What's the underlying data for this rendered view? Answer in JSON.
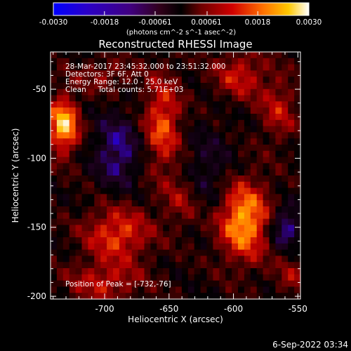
{
  "colorbar": {
    "ticks": [
      "-0.0030",
      "-0.0018",
      "-0.00061",
      "0.00061",
      "0.0018",
      "0.0030"
    ],
    "unit_label": "(photons cm^-2 s^-1 asec^-2)"
  },
  "plot": {
    "title": "Reconstructed RHESSI Image",
    "info_lines": [
      "28-Mar-2017 23:45:32.000 to 23:51:32.000",
      "Detectors: 3F 6F, Att 0",
      "Energy Range: 12.0 - 25.0 keV",
      "Clean     Total counts: 5.71E+03"
    ],
    "peak_label": "Position of Peak = [-732,-76]"
  },
  "footer": {
    "timestamp": "6-Sep-2022 03:34"
  },
  "chart_data": {
    "type": "heatmap",
    "title": "Reconstructed RHESSI Image",
    "xlabel": "Heliocentric X (arcsec)",
    "ylabel": "Heliocentric Y (arcsec)",
    "xlim": [
      -742,
      -548
    ],
    "ylim": [
      -202,
      -23
    ],
    "x_ticks": [
      -700,
      -650,
      -600,
      -550
    ],
    "y_ticks": [
      -50,
      -100,
      -150,
      -200
    ],
    "x_tick_labels": [
      "-700",
      "-650",
      "-600",
      "-550"
    ],
    "y_tick_labels": [
      "-50",
      "-100",
      "-150",
      "-200"
    ],
    "colorbar_range": [
      -0.003,
      0.003
    ],
    "colormap": [
      "#0000ff",
      "#3000b0",
      "#200020",
      "#000000",
      "#600000",
      "#c00000",
      "#ff6000",
      "#ffc000",
      "#ffffff"
    ],
    "peak_position": [
      -732,
      -76
    ],
    "peak_value": 0.003,
    "sources": [
      {
        "x": -732,
        "y": -76,
        "sx": 8,
        "sy": 14,
        "amp": 0.003
      },
      {
        "x": -592,
        "y": -145,
        "sx": 14,
        "sy": 20,
        "amp": 0.0027
      },
      {
        "x": -655,
        "y": -75,
        "sx": 10,
        "sy": 24,
        "amp": 0.0019
      },
      {
        "x": -690,
        "y": -155,
        "sx": 18,
        "sy": 14,
        "amp": 0.0018
      },
      {
        "x": -700,
        "y": -190,
        "sx": 20,
        "sy": 10,
        "amp": 0.0013
      },
      {
        "x": -595,
        "y": -40,
        "sx": 14,
        "sy": 12,
        "amp": 0.0014
      },
      {
        "x": -565,
        "y": -65,
        "sx": 10,
        "sy": 16,
        "amp": 0.0012
      },
      {
        "x": -640,
        "y": -130,
        "sx": 10,
        "sy": 14,
        "amp": 0.001
      },
      {
        "x": -700,
        "y": -40,
        "sx": 16,
        "sy": 8,
        "amp": 0.0009
      },
      {
        "x": -555,
        "y": -185,
        "sx": 8,
        "sy": 10,
        "amp": 0.0009
      },
      {
        "x": -690,
        "y": -95,
        "sx": 12,
        "sy": 18,
        "amp": -0.0015
      },
      {
        "x": -560,
        "y": -150,
        "sx": 8,
        "sy": 10,
        "amp": -0.0017
      },
      {
        "x": -620,
        "y": -110,
        "sx": 14,
        "sy": 22,
        "amp": -0.0008
      }
    ]
  }
}
